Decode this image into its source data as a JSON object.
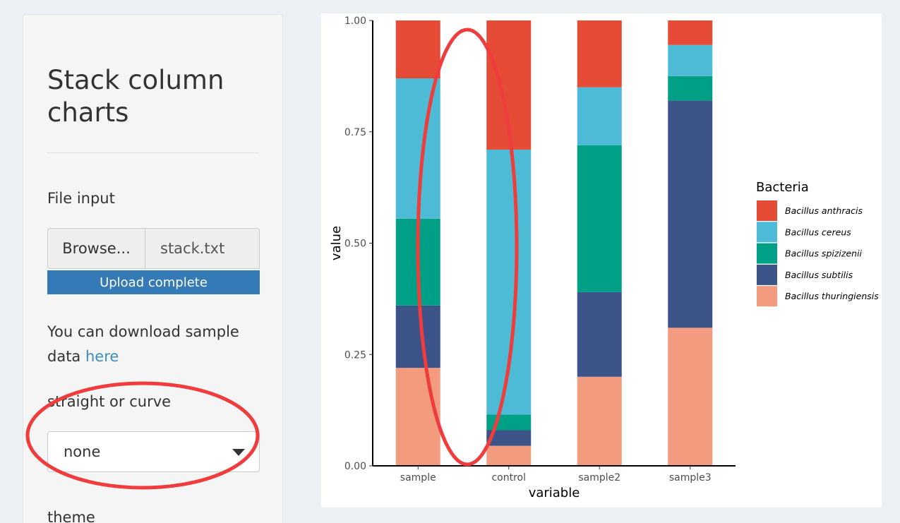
{
  "sidebar": {
    "title": "Stack column charts",
    "file_input_label": "File input",
    "browse_label": "Browse...",
    "file_name": "stack.txt",
    "upload_status": "Upload complete",
    "download_text": "You can download sample data ",
    "download_link": "here",
    "straight_curve_label": "straight or curve",
    "straight_curve_value": "none",
    "theme_label": "theme"
  },
  "colors": {
    "Bacillus anthracis": "#e64b35",
    "Bacillus cereus": "#4dbbd5",
    "Bacillus spizizenii": "#00a087",
    "Bacillus subtilis": "#3c5488",
    "Bacillus thuringiensis": "#f39b7f",
    "annotation": "#f03c3c",
    "link": "#3c8dbc"
  },
  "chart_data": {
    "type": "bar",
    "stacked": true,
    "categories": [
      "sample",
      "control",
      "sample2",
      "sample3"
    ],
    "xlabel": "variable",
    "ylabel": "value",
    "ylim": [
      0,
      1
    ],
    "yticks": [
      "0.00",
      "0.25",
      "0.50",
      "0.75",
      "1.00"
    ],
    "legend_title": "Bacteria",
    "legend_position": "right",
    "series": [
      {
        "name": "Bacillus thuringiensis",
        "values": [
          0.22,
          0.045,
          0.2,
          0.31
        ]
      },
      {
        "name": "Bacillus subtilis",
        "values": [
          0.14,
          0.035,
          0.19,
          0.51
        ]
      },
      {
        "name": "Bacillus spizizenii",
        "values": [
          0.195,
          0.035,
          0.33,
          0.055
        ]
      },
      {
        "name": "Bacillus cereus",
        "values": [
          0.315,
          0.595,
          0.13,
          0.07
        ]
      },
      {
        "name": "Bacillus anthracis",
        "values": [
          0.13,
          0.29,
          0.15,
          0.055
        ]
      }
    ]
  }
}
